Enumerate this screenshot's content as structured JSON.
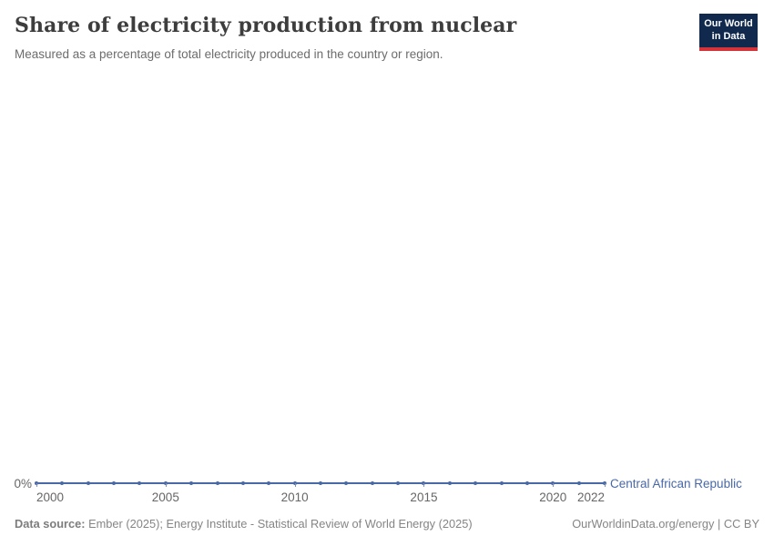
{
  "header": {
    "title": "Share of electricity production from nuclear",
    "subtitle": "Measured as a percentage of total electricity produced in the country or region."
  },
  "logo": {
    "line1": "Our World",
    "line2": "in Data",
    "bg_color": "#10294c",
    "bar_color": "#d5353a"
  },
  "chart_data": {
    "type": "line",
    "title": "Share of electricity production from nuclear",
    "entity": "Central African Republic",
    "unit": "%",
    "x": [
      2000,
      2001,
      2002,
      2003,
      2004,
      2005,
      2006,
      2007,
      2008,
      2009,
      2010,
      2011,
      2012,
      2013,
      2014,
      2015,
      2016,
      2017,
      2018,
      2019,
      2020,
      2021,
      2022
    ],
    "series": [
      {
        "name": "Central African Republic",
        "values": [
          0,
          0,
          0,
          0,
          0,
          0,
          0,
          0,
          0,
          0,
          0,
          0,
          0,
          0,
          0,
          0,
          0,
          0,
          0,
          0,
          0,
          0,
          0
        ]
      }
    ],
    "x_ticks": [
      2000,
      2005,
      2010,
      2015,
      2020,
      2022
    ],
    "y_tick_label": "0%",
    "ylim": [
      0,
      0
    ],
    "grid": false,
    "legend_position": "end-of-line",
    "line_color": "#4868a8"
  },
  "footer": {
    "source_label": "Data source:",
    "source_text": "Ember (2025); Energy Institute - Statistical Review of World Energy (2025)",
    "right": "OurWorldinData.org/energy | CC BY"
  }
}
